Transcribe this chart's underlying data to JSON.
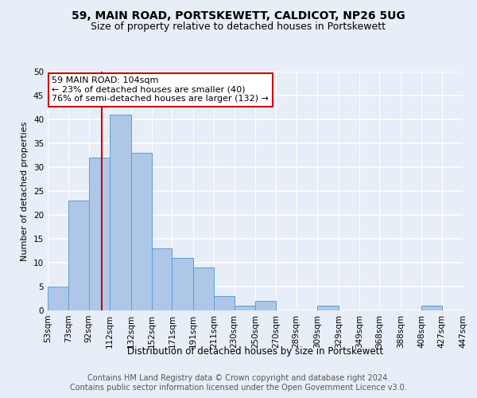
{
  "title1": "59, MAIN ROAD, PORTSKEWETT, CALDICOT, NP26 5UG",
  "title2": "Size of property relative to detached houses in Portskewett",
  "xlabel": "Distribution of detached houses by size in Portskewett",
  "ylabel": "Number of detached properties",
  "footer1": "Contains HM Land Registry data © Crown copyright and database right 2024.",
  "footer2": "Contains public sector information licensed under the Open Government Licence v3.0.",
  "annotation_line1": "59 MAIN ROAD: 104sqm",
  "annotation_line2": "← 23% of detached houses are smaller (40)",
  "annotation_line3": "76% of semi-detached houses are larger (132) →",
  "bar_color": "#aec6e8",
  "bar_edge_color": "#5a9fd4",
  "red_line_x": 104,
  "annotation_box_color": "#ffffff",
  "annotation_box_edge": "#cc0000",
  "bins": [
    53,
    73,
    92,
    112,
    132,
    152,
    171,
    191,
    211,
    230,
    250,
    270,
    289,
    309,
    329,
    349,
    368,
    388,
    408,
    427,
    447
  ],
  "values": [
    5,
    23,
    32,
    41,
    33,
    13,
    11,
    9,
    3,
    1,
    2,
    0,
    0,
    1,
    0,
    0,
    0,
    0,
    1,
    0
  ],
  "ylim": [
    0,
    50
  ],
  "yticks": [
    0,
    5,
    10,
    15,
    20,
    25,
    30,
    35,
    40,
    45,
    50
  ],
  "background_color": "#e8eef8",
  "grid_color": "#ffffff",
  "title1_fontsize": 10,
  "title2_fontsize": 9,
  "xlabel_fontsize": 8.5,
  "ylabel_fontsize": 8,
  "tick_fontsize": 7.5,
  "footer_fontsize": 7,
  "annotation_fontsize": 8
}
